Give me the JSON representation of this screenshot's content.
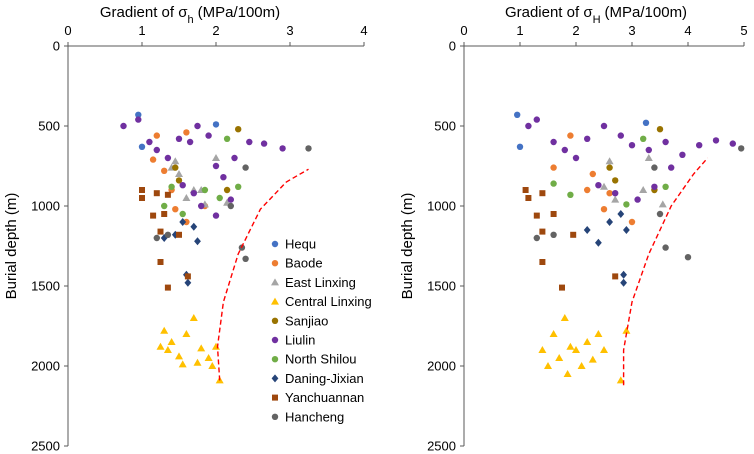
{
  "chart_data": [
    {
      "type": "scatter",
      "title": "Gradient of σh (MPa/100m)",
      "title_main": "Gradient of σ",
      "title_sub": "h",
      "title_unit": "(MPa/100m)",
      "ylabel": "Burial depth (m)",
      "xlim": [
        0,
        4
      ],
      "ylim": [
        0,
        2500
      ],
      "xticks": [
        "0",
        "1",
        "2",
        "3",
        "4"
      ],
      "yticks": [
        "0",
        "500",
        "1000",
        "1500",
        "2000",
        "2500"
      ],
      "xticks_values": [
        0,
        1,
        2,
        3,
        4
      ],
      "yticks_values": [
        0,
        500,
        1000,
        1500,
        2000,
        2500
      ],
      "trend_line": [
        [
          2.05,
          2090
        ],
        [
          2.02,
          1880
        ],
        [
          2.1,
          1600
        ],
        [
          2.3,
          1300
        ],
        [
          2.6,
          1020
        ],
        [
          2.95,
          850
        ],
        [
          3.25,
          770
        ]
      ],
      "series": [
        {
          "name": "Hequ",
          "color": "#4472C4",
          "marker": "circle",
          "points": [
            [
              0.95,
              430
            ],
            [
              1.0,
              630
            ],
            [
              2.0,
              490
            ]
          ]
        },
        {
          "name": "Baode",
          "color": "#ED7D31",
          "marker": "circle",
          "points": [
            [
              1.2,
              560
            ],
            [
              1.15,
              710
            ],
            [
              1.3,
              780
            ],
            [
              1.4,
              900
            ],
            [
              1.45,
              1020
            ],
            [
              1.6,
              1100
            ],
            [
              1.85,
              1000
            ],
            [
              1.6,
              540
            ]
          ]
        },
        {
          "name": "East Linxing",
          "color": "#A5A5A5",
          "marker": "triangle",
          "points": [
            [
              1.45,
              720
            ],
            [
              1.4,
              760
            ],
            [
              1.5,
              800
            ],
            [
              1.6,
              950
            ],
            [
              1.7,
              900
            ],
            [
              1.85,
              990
            ],
            [
              1.8,
              900
            ],
            [
              2.0,
              700
            ],
            [
              2.15,
              980
            ]
          ]
        },
        {
          "name": "Central Linxing",
          "color": "#FFC000",
          "marker": "triangle",
          "points": [
            [
              1.3,
              1780
            ],
            [
              1.35,
              1900
            ],
            [
              1.4,
              1850
            ],
            [
              1.5,
              1940
            ],
            [
              1.55,
              1990
            ],
            [
              1.6,
              1800
            ],
            [
              1.7,
              1700
            ],
            [
              1.8,
              1890
            ],
            [
              1.9,
              1950
            ],
            [
              2.0,
              1880
            ],
            [
              2.05,
              2090
            ],
            [
              1.95,
              2000
            ],
            [
              1.75,
              1980
            ],
            [
              1.25,
              1880
            ]
          ]
        },
        {
          "name": "Sanjiao",
          "color": "#997300",
          "marker": "circle",
          "points": [
            [
              1.45,
              760
            ],
            [
              1.5,
              840
            ],
            [
              2.15,
              900
            ],
            [
              2.3,
              520
            ]
          ]
        },
        {
          "name": "Liulin",
          "color": "#7030A0",
          "marker": "circle",
          "points": [
            [
              0.75,
              500
            ],
            [
              0.95,
              460
            ],
            [
              1.1,
              600
            ],
            [
              1.2,
              650
            ],
            [
              1.35,
              700
            ],
            [
              1.5,
              580
            ],
            [
              1.65,
              600
            ],
            [
              1.75,
              500
            ],
            [
              1.9,
              560
            ],
            [
              2.0,
              750
            ],
            [
              2.1,
              820
            ],
            [
              2.25,
              700
            ],
            [
              2.45,
              600
            ],
            [
              2.65,
              610
            ],
            [
              2.9,
              640
            ],
            [
              1.55,
              870
            ],
            [
              1.7,
              920
            ],
            [
              1.8,
              1000
            ],
            [
              2.0,
              1060
            ],
            [
              2.2,
              960
            ]
          ]
        },
        {
          "name": "North Shilou",
          "color": "#70AD47",
          "marker": "circle",
          "points": [
            [
              1.3,
              1000
            ],
            [
              1.4,
              880
            ],
            [
              1.55,
              1050
            ],
            [
              1.85,
              900
            ],
            [
              2.05,
              950
            ],
            [
              2.15,
              580
            ],
            [
              2.3,
              880
            ]
          ]
        },
        {
          "name": "Daning-Jixian",
          "color": "#264478",
          "marker": "diamond",
          "points": [
            [
              1.3,
              1200
            ],
            [
              1.45,
              1180
            ],
            [
              1.55,
              1100
            ],
            [
              1.7,
              1130
            ],
            [
              1.75,
              1220
            ],
            [
              1.6,
              1430
            ],
            [
              1.62,
              1480
            ]
          ]
        },
        {
          "name": "Yanchuannan",
          "color": "#9E480E",
          "marker": "square",
          "points": [
            [
              1.0,
              900
            ],
            [
              1.0,
              950
            ],
            [
              1.2,
              920
            ],
            [
              1.35,
              930
            ],
            [
              1.15,
              1060
            ],
            [
              1.25,
              1160
            ],
            [
              1.3,
              1050
            ],
            [
              1.5,
              1180
            ],
            [
              1.25,
              1350
            ],
            [
              1.35,
              1510
            ],
            [
              1.62,
              1440
            ]
          ]
        },
        {
          "name": "Hancheng",
          "color": "#636363",
          "marker": "circle",
          "points": [
            [
              1.2,
              1200
            ],
            [
              1.35,
              1180
            ],
            [
              2.2,
              1000
            ],
            [
              2.35,
              1260
            ],
            [
              2.4,
              1330
            ],
            [
              3.25,
              640
            ],
            [
              2.4,
              760
            ]
          ]
        }
      ]
    },
    {
      "type": "scatter",
      "title": "Gradient of σH (MPa/100m)",
      "title_main": "Gradient of σ",
      "title_sub": "H",
      "title_unit": "(MPa/100m)",
      "ylabel": "Burial depth (m)",
      "xlim": [
        0,
        5
      ],
      "ylim": [
        0,
        2500
      ],
      "xticks": [
        "0",
        "1",
        "2",
        "3",
        "4",
        "5"
      ],
      "yticks": [
        "0",
        "500",
        "1000",
        "1500",
        "2000",
        "2500"
      ],
      "xticks_values": [
        0,
        1,
        2,
        3,
        4,
        5
      ],
      "yticks_values": [
        0,
        500,
        1000,
        1500,
        2000,
        2500
      ],
      "trend_line": [
        [
          2.85,
          2120
        ],
        [
          2.85,
          1900
        ],
        [
          3.0,
          1600
        ],
        [
          3.3,
          1300
        ],
        [
          3.7,
          1000
        ],
        [
          4.1,
          800
        ],
        [
          4.35,
          700
        ]
      ],
      "series": [
        {
          "name": "Hequ",
          "color": "#4472C4",
          "marker": "circle",
          "points": [
            [
              0.95,
              430
            ],
            [
              1.0,
              630
            ],
            [
              3.25,
              480
            ]
          ]
        },
        {
          "name": "Baode",
          "color": "#ED7D31",
          "marker": "circle",
          "points": [
            [
              1.9,
              560
            ],
            [
              1.6,
              760
            ],
            [
              2.3,
              800
            ],
            [
              2.2,
              900
            ],
            [
              2.5,
              1020
            ],
            [
              3.0,
              1100
            ],
            [
              2.6,
              920
            ]
          ]
        },
        {
          "name": "East Linxing",
          "color": "#A5A5A5",
          "marker": "triangle",
          "points": [
            [
              2.6,
              720
            ],
            [
              2.5,
              880
            ],
            [
              3.3,
              700
            ],
            [
              3.55,
              990
            ],
            [
              3.2,
              900
            ],
            [
              2.7,
              960
            ]
          ]
        },
        {
          "name": "Central Linxing",
          "color": "#FFC000",
          "marker": "triangle",
          "points": [
            [
              1.4,
              1900
            ],
            [
              1.6,
              1800
            ],
            [
              1.7,
              1950
            ],
            [
              1.8,
              1700
            ],
            [
              1.9,
              1880
            ],
            [
              2.0,
              1900
            ],
            [
              2.1,
              2000
            ],
            [
              2.2,
              1850
            ],
            [
              2.3,
              1960
            ],
            [
              2.4,
              1800
            ],
            [
              2.5,
              1900
            ],
            [
              1.5,
              2000
            ],
            [
              1.85,
              2050
            ],
            [
              2.8,
              2090
            ],
            [
              2.9,
              1780
            ]
          ]
        },
        {
          "name": "Sanjiao",
          "color": "#997300",
          "marker": "circle",
          "points": [
            [
              2.6,
              760
            ],
            [
              2.7,
              840
            ],
            [
              3.4,
              900
            ],
            [
              3.5,
              520
            ]
          ]
        },
        {
          "name": "Liulin",
          "color": "#7030A0",
          "marker": "circle",
          "points": [
            [
              1.15,
              500
            ],
            [
              1.3,
              460
            ],
            [
              1.6,
              600
            ],
            [
              1.8,
              650
            ],
            [
              2.0,
              700
            ],
            [
              2.2,
              580
            ],
            [
              2.5,
              500
            ],
            [
              2.8,
              560
            ],
            [
              3.0,
              620
            ],
            [
              3.3,
              650
            ],
            [
              3.6,
              600
            ],
            [
              3.9,
              680
            ],
            [
              4.2,
              620
            ],
            [
              4.5,
              590
            ],
            [
              4.8,
              610
            ],
            [
              2.4,
              870
            ],
            [
              2.7,
              920
            ],
            [
              3.1,
              960
            ],
            [
              3.4,
              880
            ],
            [
              3.7,
              760
            ]
          ]
        },
        {
          "name": "North Shilou",
          "color": "#70AD47",
          "marker": "circle",
          "points": [
            [
              1.6,
              860
            ],
            [
              1.9,
              930
            ],
            [
              2.9,
              990
            ],
            [
              3.2,
              580
            ],
            [
              3.6,
              880
            ]
          ]
        },
        {
          "name": "Daning-Jixian",
          "color": "#264478",
          "marker": "diamond",
          "points": [
            [
              2.2,
              1150
            ],
            [
              2.4,
              1230
            ],
            [
              2.6,
              1100
            ],
            [
              2.8,
              1050
            ],
            [
              2.9,
              1150
            ],
            [
              2.85,
              1430
            ],
            [
              2.85,
              1480
            ]
          ]
        },
        {
          "name": "Yanchuannan",
          "color": "#9E480E",
          "marker": "square",
          "points": [
            [
              1.1,
              900
            ],
            [
              1.15,
              950
            ],
            [
              1.4,
              920
            ],
            [
              1.3,
              1060
            ],
            [
              1.4,
              1160
            ],
            [
              1.6,
              1050
            ],
            [
              1.95,
              1180
            ],
            [
              1.4,
              1350
            ],
            [
              1.75,
              1510
            ],
            [
              2.7,
              1440
            ]
          ]
        },
        {
          "name": "Hancheng",
          "color": "#636363",
          "marker": "circle",
          "points": [
            [
              1.3,
              1200
            ],
            [
              1.6,
              1180
            ],
            [
              3.5,
              1050
            ],
            [
              3.6,
              1260
            ],
            [
              4.0,
              1320
            ],
            [
              4.95,
              640
            ],
            [
              3.4,
              760
            ]
          ]
        }
      ]
    }
  ]
}
